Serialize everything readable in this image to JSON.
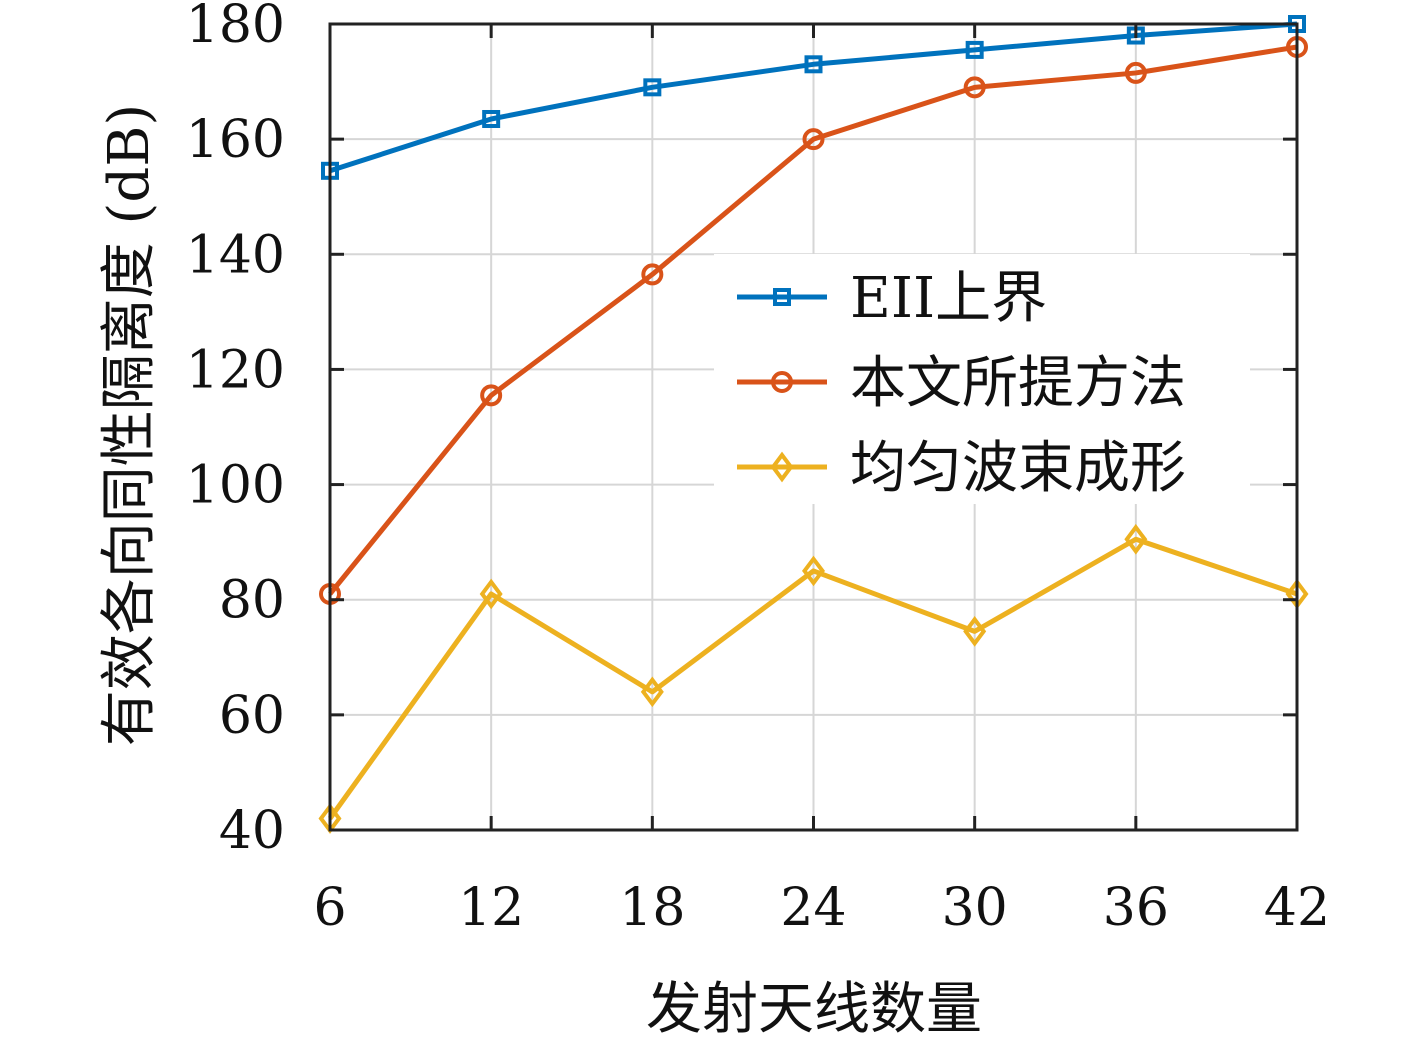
{
  "chart_data": {
    "type": "line",
    "xlabel": "发射天线数量",
    "ylabel": "有效各向同性隔离度 (dB)",
    "x": [
      6,
      12,
      18,
      24,
      30,
      36,
      42
    ],
    "xlim": [
      6,
      42
    ],
    "ylim": [
      40,
      180
    ],
    "xticks": [
      "6",
      "12",
      "18",
      "24",
      "30",
      "36",
      "42"
    ],
    "yticks": [
      "40",
      "60",
      "80",
      "100",
      "120",
      "140",
      "160",
      "180"
    ],
    "grid": true,
    "legend_position": "middle-right",
    "series": [
      {
        "name": "EII上界",
        "color": "#0072BD",
        "marker": "square",
        "values": [
          154.5,
          163.5,
          169,
          173,
          175.5,
          178,
          180
        ]
      },
      {
        "name": "本文所提方法",
        "color": "#D95319",
        "marker": "circle",
        "values": [
          81,
          115.5,
          136.5,
          160,
          169,
          171.5,
          176
        ]
      },
      {
        "name": "均匀波束成形",
        "color": "#EDB120",
        "marker": "diamond",
        "values": [
          42,
          81,
          64,
          85,
          74.5,
          90.5,
          81
        ]
      }
    ]
  }
}
